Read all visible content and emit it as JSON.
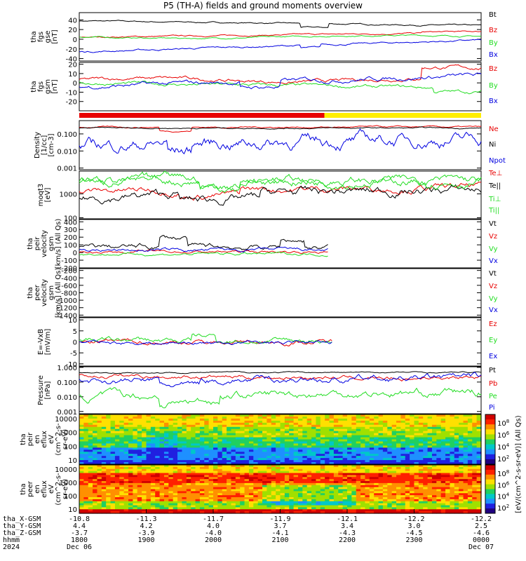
{
  "title": "P5 (TH-A) fields and ground moments overview",
  "colors": {
    "black": "#000000",
    "red": "#e80000",
    "green": "#22dd22",
    "blue": "#0000e0",
    "yellow": "#ffee00"
  },
  "chart_data": [
    {
      "type": "line",
      "name": "fgs_gse",
      "ylabel": [
        "tha",
        "fgs",
        "gse",
        "[nT]"
      ],
      "ylim": [
        -45,
        55
      ],
      "yticks": [
        40,
        20,
        0,
        -20,
        -40
      ],
      "series": [
        {
          "name": "Bt",
          "color": "#000000"
        },
        {
          "name": "Bz",
          "color": "#e80000"
        },
        {
          "name": "By",
          "color": "#22dd22"
        },
        {
          "name": "Bx",
          "color": "#0000e0"
        }
      ]
    },
    {
      "type": "line",
      "name": "fgs_gsm",
      "ylabel": [
        "tha",
        "fgs",
        "gsm",
        "[nT]"
      ],
      "ylim": [
        -30,
        22
      ],
      "yticks": [
        20,
        10,
        0,
        -10,
        -20
      ],
      "series": [
        {
          "name": "Bz",
          "color": "#e80000"
        },
        {
          "name": "By",
          "color": "#22dd22"
        },
        {
          "name": "Bx",
          "color": "#0000e0"
        }
      ]
    },
    {
      "type": "line",
      "name": "density",
      "ylabel": [
        "Density",
        "[1/cc]",
        "[cm-3]"
      ],
      "log": true,
      "ylim": [
        0.0008,
        0.6
      ],
      "yticks": [
        0.1,
        0.01,
        0.001
      ],
      "yticklabels": [
        "0.100",
        "0.010",
        "0.001"
      ],
      "series": [
        {
          "name": "Ne",
          "color": "#e80000"
        },
        {
          "name": "Ni",
          "color": "#000000"
        },
        {
          "name": "Npot",
          "color": "#0000e0"
        }
      ]
    },
    {
      "type": "line",
      "name": "temperature",
      "ylabel": [
        "moqt3",
        "[eV]"
      ],
      "log": true,
      "ylim": [
        90,
        9000
      ],
      "yticks": [
        1000,
        100
      ],
      "yticklabels": [
        "1000",
        "100"
      ],
      "series": [
        {
          "name": "Te⊥",
          "color": "#e80000"
        },
        {
          "name": "Te||",
          "color": "#000000"
        },
        {
          "name": "Ti⊥",
          "color": "#22dd22"
        },
        {
          "name": "Ti||",
          "color": "#22dd22"
        }
      ]
    },
    {
      "type": "line",
      "name": "peir_velocity",
      "ylabel": [
        "tha",
        "peir",
        "velocity",
        "gsm",
        "[km/s] (All Qs)"
      ],
      "ylim": [
        -200,
        430
      ],
      "yticks": [
        400,
        300,
        200,
        100,
        0,
        -100,
        -200
      ],
      "series": [
        {
          "name": "Vt",
          "color": "#000000"
        },
        {
          "name": "Vz",
          "color": "#e80000"
        },
        {
          "name": "Vy",
          "color": "#22dd22"
        },
        {
          "name": "Vx",
          "color": "#0000e0"
        }
      ]
    },
    {
      "type": "line",
      "name": "peer_velocity",
      "ylabel": [
        "tha",
        "peer",
        "velocity",
        "gsm",
        "[km/s] (All Qs)"
      ],
      "ylim": [
        -1450,
        -150
      ],
      "yticks": [
        -200,
        -400,
        -600,
        -800,
        -1000,
        -1200,
        -1400
      ],
      "series": [
        {
          "name": "Vt",
          "color": "#000000"
        },
        {
          "name": "Vz",
          "color": "#e80000"
        },
        {
          "name": "Vy",
          "color": "#22dd22"
        },
        {
          "name": "Vx",
          "color": "#0000e0"
        }
      ]
    },
    {
      "type": "line",
      "name": "efield",
      "ylabel": [
        "E=-VxB",
        "[mV/m]"
      ],
      "ylim": [
        -11,
        11
      ],
      "yticks": [
        10,
        5,
        0,
        -5,
        -10
      ],
      "series": [
        {
          "name": "Ez",
          "color": "#e80000"
        },
        {
          "name": "Ey",
          "color": "#22dd22"
        },
        {
          "name": "Ex",
          "color": "#0000e0"
        }
      ]
    },
    {
      "type": "line",
      "name": "pressure",
      "ylabel": [
        "Pressure",
        "[nPa]"
      ],
      "log": true,
      "ylim": [
        0.0007,
        1.1
      ],
      "yticks": [
        1,
        0.1,
        0.01,
        0.001
      ],
      "yticklabels": [
        "1.000",
        "0.100",
        "0.010",
        "0.001"
      ],
      "series": [
        {
          "name": "Pt",
          "color": "#000000"
        },
        {
          "name": "Pb",
          "color": "#e80000"
        },
        {
          "name": "Pe",
          "color": "#22dd22"
        },
        {
          "name": "Pi",
          "color": "#0000e0"
        }
      ]
    },
    {
      "type": "heatmap",
      "name": "peir_en_eflux",
      "ylabel": [
        "tha",
        "peir",
        "en",
        "eflux",
        "eV",
        "(cm^2-s-",
        "sr-eV)"
      ],
      "log": true,
      "ylim": [
        5,
        20000
      ],
      "yticks": [
        10000,
        1000,
        100,
        10
      ],
      "yticklabels": [
        "10000",
        "1000",
        "100",
        "10"
      ],
      "colorbar": {
        "label": "[eV/(cm^2-s-sr-eV)] (All Qs)",
        "ticks": [
          "10^8",
          "10^6",
          "10^4",
          "10^2"
        ]
      }
    },
    {
      "type": "heatmap",
      "name": "peer_en_eflux",
      "ylabel": [
        "tha",
        "peer",
        "en",
        "eflux",
        "eV",
        "(cm^2-s-",
        "sr-eV)"
      ],
      "log": true,
      "ylim": [
        5,
        20000
      ],
      "yticks": [
        10000,
        1000,
        100,
        10
      ],
      "yticklabels": [
        "10000",
        "1000",
        "100",
        "10"
      ],
      "colorbar": {
        "label": "[eV/(cm^2-s-sr-eV)] (All Qs)",
        "ticks": [
          "10^8",
          "10^6",
          "10^4",
          "10^2"
        ]
      }
    }
  ],
  "mode_bar": {
    "segments": [
      {
        "color": "#e80000",
        "from": 0,
        "to": 0.61
      },
      {
        "color": "#ffee00",
        "from": 0.61,
        "to": 1.0
      }
    ]
  },
  "xaxis": {
    "rows": [
      {
        "label": "tha_X-GSM",
        "values": [
          "-10.8",
          "-11.3",
          "-11.7",
          "-11.9",
          "-12.1",
          "-12.2",
          "-12.2"
        ]
      },
      {
        "label": "tha_Y-GSM",
        "values": [
          "4.4",
          "4.2",
          "4.0",
          "3.7",
          "3.4",
          "3.0",
          "2.5"
        ]
      },
      {
        "label": "tha_Z-GSM",
        "values": [
          "-3.7",
          "-3.9",
          "-4.0",
          "-4.1",
          "-4.3",
          "-4.5",
          "-4.6"
        ]
      },
      {
        "label": "hhmm",
        "values": [
          "1800",
          "1900",
          "2000",
          "2100",
          "2200",
          "2300",
          "0000"
        ]
      },
      {
        "label": "2024",
        "values": [
          "Dec 06",
          "",
          "",
          "",
          "",
          "",
          "Dec 07"
        ]
      }
    ]
  }
}
